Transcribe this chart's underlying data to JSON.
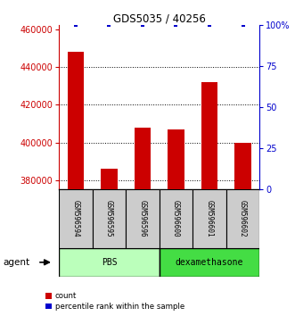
{
  "title": "GDS5035 / 40256",
  "samples": [
    "GSM596594",
    "GSM596595",
    "GSM596596",
    "GSM596600",
    "GSM596601",
    "GSM596602"
  ],
  "counts": [
    448000,
    386000,
    408000,
    407000,
    432000,
    400000
  ],
  "percentile_ranks": [
    100,
    100,
    100,
    100,
    100,
    100
  ],
  "ylim_left": [
    375000,
    462000
  ],
  "ylim_right": [
    0,
    100
  ],
  "yticks_left": [
    380000,
    400000,
    420000,
    440000,
    460000
  ],
  "yticks_right": [
    0,
    25,
    50,
    75,
    100
  ],
  "ytick_labels_right": [
    "0",
    "25",
    "50",
    "75",
    "100%"
  ],
  "bar_color": "#cc0000",
  "dot_color": "#0000cc",
  "group_data": [
    {
      "label": "PBS",
      "start": 0,
      "end": 2,
      "color": "#bbffbb"
    },
    {
      "label": "dexamethasone",
      "start": 3,
      "end": 5,
      "color": "#44dd44"
    }
  ],
  "agent_label": "agent",
  "legend_count_label": "count",
  "legend_pct_label": "percentile rank within the sample",
  "bar_width": 0.5,
  "ylabel_color_left": "#cc0000",
  "ylabel_color_right": "#0000cc",
  "sample_box_color": "#cccccc",
  "bar_bottom": 375000
}
